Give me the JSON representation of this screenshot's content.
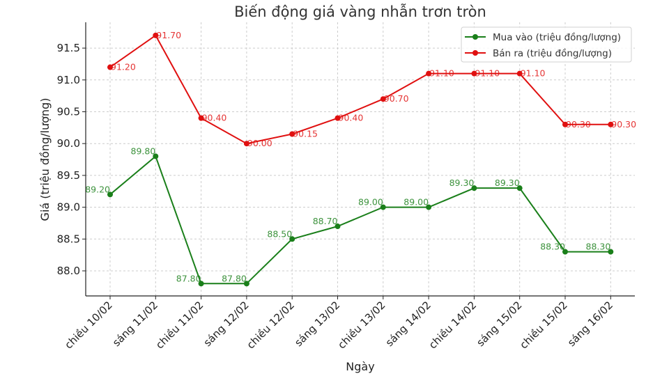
{
  "chart_data": {
    "type": "line",
    "title": "Biến động giá vàng nhẫn trơn tròn",
    "xlabel": "Ngày",
    "ylabel": "Giá (triệu đồng/lượng)",
    "categories": [
      "chiều 10/02",
      "sáng 11/02",
      "chiều 11/02",
      "sáng 12/02",
      "chiều 12/02",
      "sáng 13/02",
      "chiều 13/02",
      "sáng 14/02",
      "chiều 14/02",
      "sáng 15/02",
      "chiều 15/02",
      "sáng 16/02"
    ],
    "series": [
      {
        "name": "Mua vào (triệu đồng/lượng)",
        "color": "#1a7f1a",
        "values": [
          89.2,
          89.8,
          87.8,
          87.8,
          88.5,
          88.7,
          89.0,
          89.0,
          89.3,
          89.3,
          88.3,
          88.3
        ]
      },
      {
        "name": "Bán ra (triệu đồng/lượng)",
        "color": "#e01010",
        "values": [
          91.2,
          91.7,
          90.4,
          90.0,
          90.15,
          90.4,
          90.7,
          91.1,
          91.1,
          91.1,
          90.3,
          90.3
        ]
      }
    ],
    "ylim": [
      87.6,
      91.9
    ],
    "yticks": [
      "88.0",
      "88.5",
      "89.0",
      "89.5",
      "90.0",
      "90.5",
      "91.0",
      "91.5"
    ],
    "grid": true,
    "legend_position": "upper right"
  }
}
